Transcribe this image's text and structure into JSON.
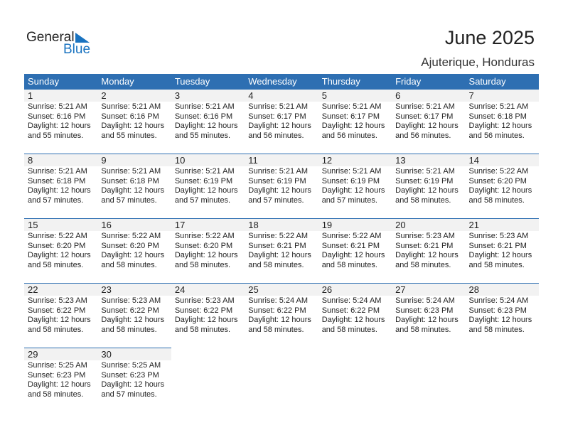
{
  "logo": {
    "line1": "General",
    "line2": "Blue",
    "color": "#1a73c0"
  },
  "header": {
    "title": "June 2025",
    "location": "Ajuterique, Honduras"
  },
  "weekdays": [
    "Sunday",
    "Monday",
    "Tuesday",
    "Wednesday",
    "Thursday",
    "Friday",
    "Saturday"
  ],
  "labels": {
    "sunrise": "Sunrise:",
    "sunset": "Sunset:",
    "daylight": "Daylight:"
  },
  "accent": "#2e6fb2",
  "first_weekday_index": 0,
  "days": [
    {
      "day": "1",
      "sunrise": "5:21 AM",
      "sunset": "6:16 PM",
      "hours": "12 hours",
      "minutes": "and 55 minutes."
    },
    {
      "day": "2",
      "sunrise": "5:21 AM",
      "sunset": "6:16 PM",
      "hours": "12 hours",
      "minutes": "and 55 minutes."
    },
    {
      "day": "3",
      "sunrise": "5:21 AM",
      "sunset": "6:16 PM",
      "hours": "12 hours",
      "minutes": "and 55 minutes."
    },
    {
      "day": "4",
      "sunrise": "5:21 AM",
      "sunset": "6:17 PM",
      "hours": "12 hours",
      "minutes": "and 56 minutes."
    },
    {
      "day": "5",
      "sunrise": "5:21 AM",
      "sunset": "6:17 PM",
      "hours": "12 hours",
      "minutes": "and 56 minutes."
    },
    {
      "day": "6",
      "sunrise": "5:21 AM",
      "sunset": "6:17 PM",
      "hours": "12 hours",
      "minutes": "and 56 minutes."
    },
    {
      "day": "7",
      "sunrise": "5:21 AM",
      "sunset": "6:18 PM",
      "hours": "12 hours",
      "minutes": "and 56 minutes."
    },
    {
      "day": "8",
      "sunrise": "5:21 AM",
      "sunset": "6:18 PM",
      "hours": "12 hours",
      "minutes": "and 57 minutes."
    },
    {
      "day": "9",
      "sunrise": "5:21 AM",
      "sunset": "6:18 PM",
      "hours": "12 hours",
      "minutes": "and 57 minutes."
    },
    {
      "day": "10",
      "sunrise": "5:21 AM",
      "sunset": "6:19 PM",
      "hours": "12 hours",
      "minutes": "and 57 minutes."
    },
    {
      "day": "11",
      "sunrise": "5:21 AM",
      "sunset": "6:19 PM",
      "hours": "12 hours",
      "minutes": "and 57 minutes."
    },
    {
      "day": "12",
      "sunrise": "5:21 AM",
      "sunset": "6:19 PM",
      "hours": "12 hours",
      "minutes": "and 57 minutes."
    },
    {
      "day": "13",
      "sunrise": "5:21 AM",
      "sunset": "6:19 PM",
      "hours": "12 hours",
      "minutes": "and 58 minutes."
    },
    {
      "day": "14",
      "sunrise": "5:22 AM",
      "sunset": "6:20 PM",
      "hours": "12 hours",
      "minutes": "and 58 minutes."
    },
    {
      "day": "15",
      "sunrise": "5:22 AM",
      "sunset": "6:20 PM",
      "hours": "12 hours",
      "minutes": "and 58 minutes."
    },
    {
      "day": "16",
      "sunrise": "5:22 AM",
      "sunset": "6:20 PM",
      "hours": "12 hours",
      "minutes": "and 58 minutes."
    },
    {
      "day": "17",
      "sunrise": "5:22 AM",
      "sunset": "6:20 PM",
      "hours": "12 hours",
      "minutes": "and 58 minutes."
    },
    {
      "day": "18",
      "sunrise": "5:22 AM",
      "sunset": "6:21 PM",
      "hours": "12 hours",
      "minutes": "and 58 minutes."
    },
    {
      "day": "19",
      "sunrise": "5:22 AM",
      "sunset": "6:21 PM",
      "hours": "12 hours",
      "minutes": "and 58 minutes."
    },
    {
      "day": "20",
      "sunrise": "5:23 AM",
      "sunset": "6:21 PM",
      "hours": "12 hours",
      "minutes": "and 58 minutes."
    },
    {
      "day": "21",
      "sunrise": "5:23 AM",
      "sunset": "6:21 PM",
      "hours": "12 hours",
      "minutes": "and 58 minutes."
    },
    {
      "day": "22",
      "sunrise": "5:23 AM",
      "sunset": "6:22 PM",
      "hours": "12 hours",
      "minutes": "and 58 minutes."
    },
    {
      "day": "23",
      "sunrise": "5:23 AM",
      "sunset": "6:22 PM",
      "hours": "12 hours",
      "minutes": "and 58 minutes."
    },
    {
      "day": "24",
      "sunrise": "5:23 AM",
      "sunset": "6:22 PM",
      "hours": "12 hours",
      "minutes": "and 58 minutes."
    },
    {
      "day": "25",
      "sunrise": "5:24 AM",
      "sunset": "6:22 PM",
      "hours": "12 hours",
      "minutes": "and 58 minutes."
    },
    {
      "day": "26",
      "sunrise": "5:24 AM",
      "sunset": "6:22 PM",
      "hours": "12 hours",
      "minutes": "and 58 minutes."
    },
    {
      "day": "27",
      "sunrise": "5:24 AM",
      "sunset": "6:23 PM",
      "hours": "12 hours",
      "minutes": "and 58 minutes."
    },
    {
      "day": "28",
      "sunrise": "5:24 AM",
      "sunset": "6:23 PM",
      "hours": "12 hours",
      "minutes": "and 58 minutes."
    },
    {
      "day": "29",
      "sunrise": "5:25 AM",
      "sunset": "6:23 PM",
      "hours": "12 hours",
      "minutes": "and 58 minutes."
    },
    {
      "day": "30",
      "sunrise": "5:25 AM",
      "sunset": "6:23 PM",
      "hours": "12 hours",
      "minutes": "and 57 minutes."
    }
  ]
}
